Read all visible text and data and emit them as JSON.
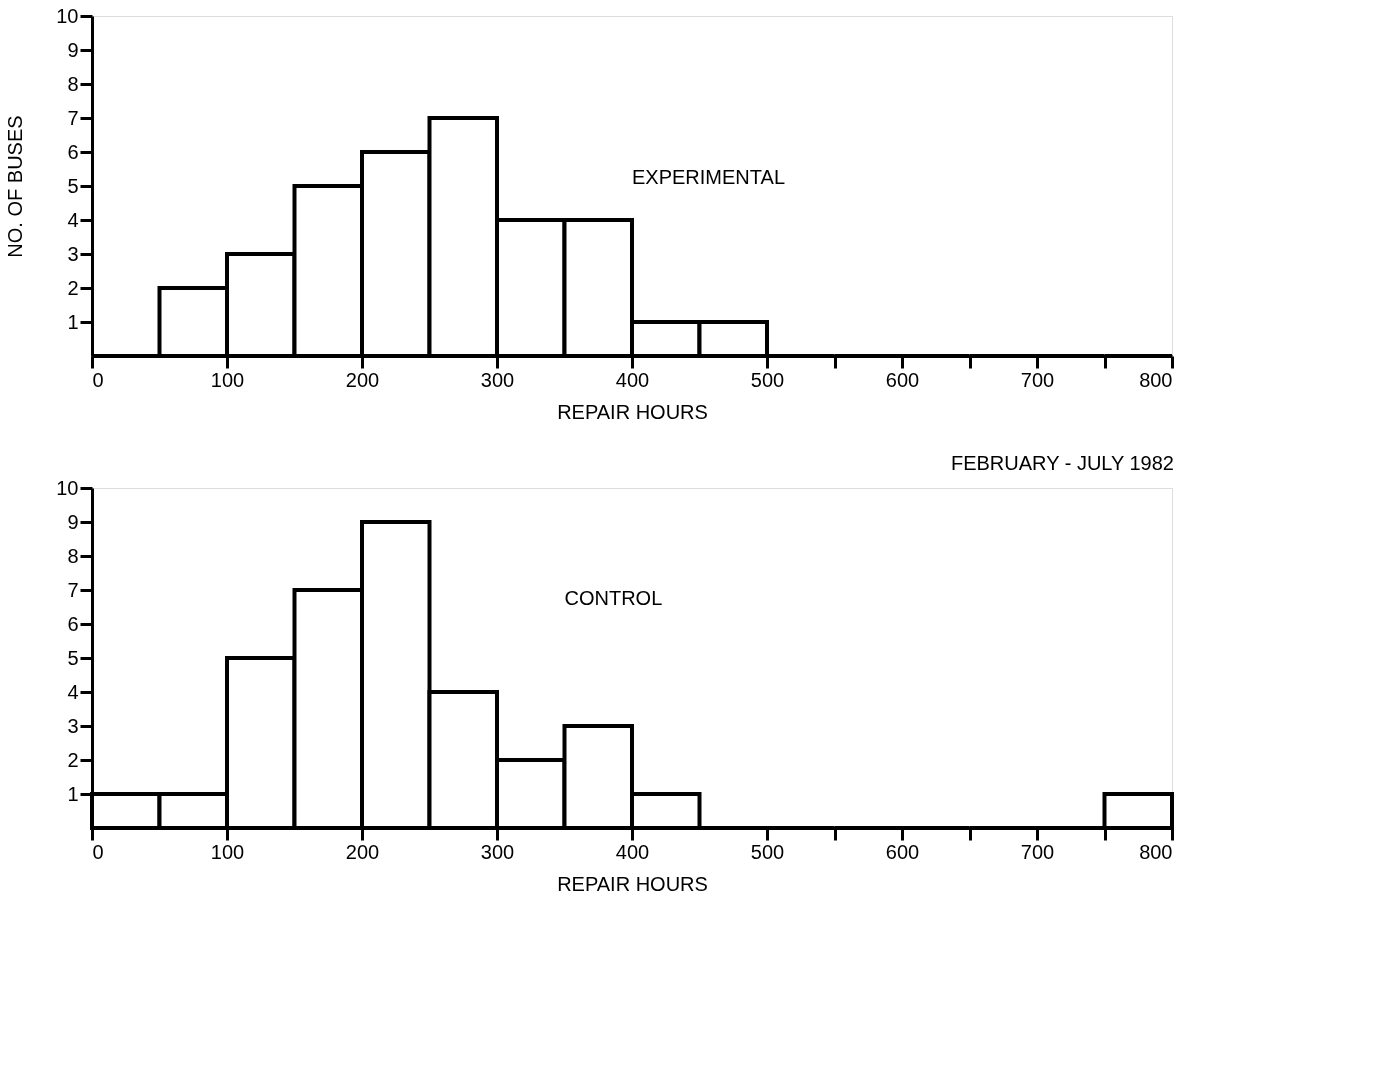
{
  "chart_data": [
    {
      "type": "histogram",
      "xlabel": "REPAIR HOURS",
      "ylabel": "NO. OF BUSES",
      "bins": [
        0,
        50,
        100,
        150,
        200,
        250,
        300,
        350,
        400,
        450,
        500,
        550,
        600,
        650,
        700,
        750,
        800
      ],
      "series": [
        {
          "name": "EXPERIMENTAL",
          "color": "#000000",
          "values": [
            0,
            2,
            3,
            5,
            6,
            7,
            4,
            4,
            1,
            1,
            0,
            0,
            0,
            0,
            0,
            0
          ]
        }
      ],
      "xlim": [
        0,
        800
      ],
      "ylim": [
        0,
        10
      ],
      "xticks": [
        0,
        100,
        200,
        300,
        400,
        500,
        {
          "value": 550,
          "label": null
        },
        600,
        {
          "value": 650,
          "label": null
        },
        700,
        {
          "value": 750,
          "label": null
        },
        800
      ],
      "yticks": [
        1,
        2,
        3,
        4,
        5,
        6,
        7,
        8,
        9,
        10
      ],
      "grid": false
    },
    {
      "type": "histogram",
      "xlabel": "REPAIR HOURS",
      "annotations": [
        "FEBRUARY - JULY 1982"
      ],
      "bins": [
        0,
        50,
        100,
        150,
        200,
        250,
        300,
        350,
        400,
        450,
        500,
        550,
        600,
        650,
        700,
        750,
        800
      ],
      "series": [
        {
          "name": "CONTROL",
          "color": "#000000",
          "values": [
            1,
            1,
            5,
            7,
            9,
            4,
            2,
            3,
            1,
            0,
            0,
            0,
            0,
            0,
            0,
            1
          ]
        }
      ],
      "xlim": [
        0,
        800
      ],
      "ylim": [
        0,
        10
      ],
      "xticks": [
        0,
        100,
        200,
        300,
        400,
        500,
        {
          "value": 550,
          "label": null
        },
        600,
        {
          "value": 650,
          "label": null
        },
        700,
        {
          "value": 750,
          "label": null
        },
        800
      ],
      "yticks": [
        1,
        2,
        3,
        4,
        5,
        6,
        7,
        8,
        9,
        10
      ],
      "grid": false
    }
  ]
}
